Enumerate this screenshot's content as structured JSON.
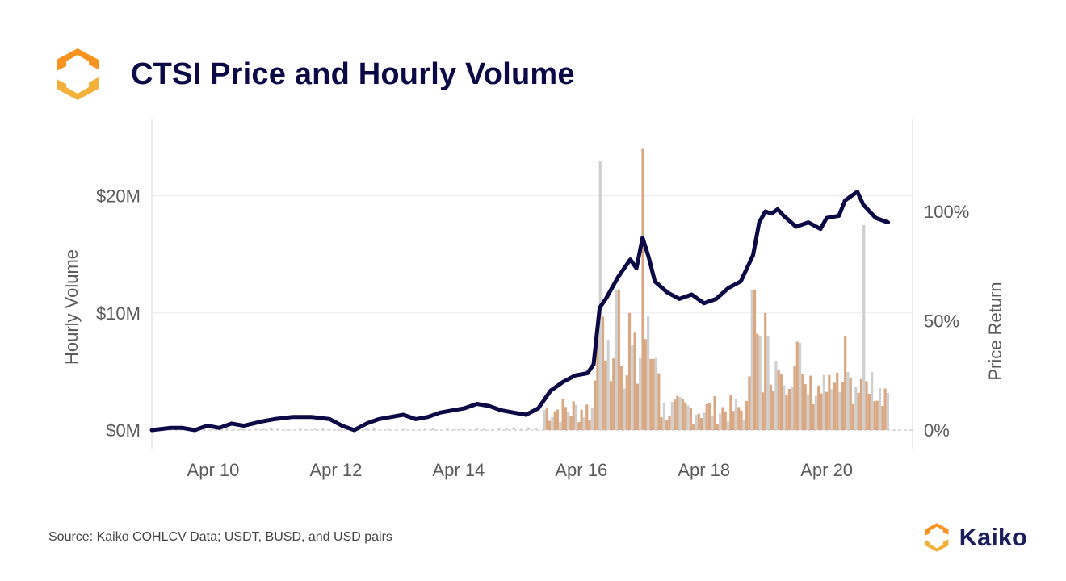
{
  "header": {
    "title": "CTSI Price and Hourly Volume",
    "logo_icon": "kaiko-logo-icon"
  },
  "footer": {
    "source": "Source: Kaiko COHLCV Data; USDT, BUSD, and USD pairs",
    "brand": "Kaiko"
  },
  "colors": {
    "title": "#0b0a47",
    "price_line": "#0b0a47",
    "volume_primary": "#d9a882",
    "volume_other": "#cfcfcf",
    "logo_orange": "#f7931e"
  },
  "chart_data": {
    "type": "bar+line",
    "title": "CTSI Price and Hourly Volume",
    "x_axis": {
      "type": "date",
      "ticks": [
        "Apr 10",
        "Apr 12",
        "Apr 14",
        "Apr 16",
        "Apr 18",
        "Apr 20"
      ],
      "range_days": [
        9.0,
        21.4
      ],
      "tick_days": [
        10,
        12,
        14,
        16,
        18,
        20
      ]
    },
    "y_left": {
      "label": "Hourly Volume",
      "range": [
        0,
        25000000
      ],
      "ticks": [
        0,
        10000000,
        20000000
      ],
      "tick_labels": [
        "$0M",
        "$10M",
        "$20M"
      ]
    },
    "y_right": {
      "label": "Price Return",
      "range": [
        -0.005,
        1.37
      ],
      "ticks": [
        0,
        0.5,
        1.0
      ],
      "tick_labels": [
        "0%",
        "50%",
        "100%"
      ]
    },
    "grid": "horizontal",
    "series": [
      {
        "kind": "line",
        "axis": "right",
        "points": [
          [
            9.0,
            0.0
          ],
          [
            9.3,
            0.01
          ],
          [
            9.5,
            0.01
          ],
          [
            9.7,
            0.0
          ],
          [
            9.9,
            0.02
          ],
          [
            10.1,
            0.01
          ],
          [
            10.3,
            0.03
          ],
          [
            10.5,
            0.02
          ],
          [
            10.8,
            0.04
          ],
          [
            11.0,
            0.05
          ],
          [
            11.3,
            0.06
          ],
          [
            11.6,
            0.06
          ],
          [
            11.9,
            0.05
          ],
          [
            12.1,
            0.02
          ],
          [
            12.3,
            0.0
          ],
          [
            12.5,
            0.03
          ],
          [
            12.7,
            0.05
          ],
          [
            12.9,
            0.06
          ],
          [
            13.1,
            0.07
          ],
          [
            13.3,
            0.05
          ],
          [
            13.5,
            0.06
          ],
          [
            13.7,
            0.08
          ],
          [
            13.9,
            0.09
          ],
          [
            14.1,
            0.1
          ],
          [
            14.3,
            0.12
          ],
          [
            14.5,
            0.11
          ],
          [
            14.7,
            0.09
          ],
          [
            14.9,
            0.08
          ],
          [
            15.1,
            0.07
          ],
          [
            15.3,
            0.1
          ],
          [
            15.5,
            0.18
          ],
          [
            15.7,
            0.22
          ],
          [
            15.9,
            0.25
          ],
          [
            16.1,
            0.26
          ],
          [
            16.2,
            0.3
          ],
          [
            16.3,
            0.56
          ],
          [
            16.4,
            0.6
          ],
          [
            16.6,
            0.7
          ],
          [
            16.8,
            0.78
          ],
          [
            16.9,
            0.74
          ],
          [
            17.0,
            0.88
          ],
          [
            17.1,
            0.79
          ],
          [
            17.2,
            0.68
          ],
          [
            17.4,
            0.63
          ],
          [
            17.6,
            0.6
          ],
          [
            17.8,
            0.62
          ],
          [
            18.0,
            0.58
          ],
          [
            18.2,
            0.6
          ],
          [
            18.4,
            0.65
          ],
          [
            18.6,
            0.68
          ],
          [
            18.8,
            0.8
          ],
          [
            18.9,
            0.95
          ],
          [
            19.0,
            1.0
          ],
          [
            19.1,
            0.99
          ],
          [
            19.2,
            1.01
          ],
          [
            19.3,
            0.98
          ],
          [
            19.5,
            0.93
          ],
          [
            19.7,
            0.95
          ],
          [
            19.9,
            0.92
          ],
          [
            20.0,
            0.97
          ],
          [
            20.2,
            0.98
          ],
          [
            20.3,
            1.05
          ],
          [
            20.5,
            1.09
          ],
          [
            20.6,
            1.03
          ],
          [
            20.8,
            0.97
          ],
          [
            21.0,
            0.95
          ]
        ]
      },
      {
        "kind": "bar",
        "axis": "left",
        "name": "Volume",
        "values_million": [
          [
            16.3,
            23
          ],
          [
            17.0,
            24
          ],
          [
            16.6,
            12
          ],
          [
            16.8,
            10
          ],
          [
            18.8,
            12
          ],
          [
            19.0,
            10
          ],
          [
            20.3,
            8
          ],
          [
            20.6,
            17.5
          ]
        ]
      }
    ]
  }
}
